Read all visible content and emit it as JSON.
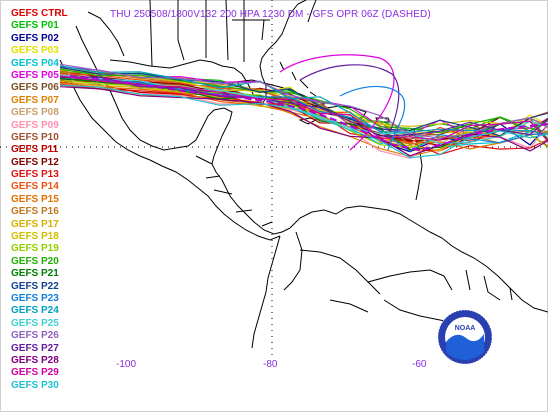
{
  "title": "THU 250508/1800V132  200 HPA 1230 DM - GFS OPR 06Z (DASHED)",
  "legend": [
    {
      "label": "GEFS CTRL",
      "color": "#e00000"
    },
    {
      "label": "GEFS P01",
      "color": "#00c000"
    },
    {
      "label": "GEFS P02",
      "color": "#000090"
    },
    {
      "label": "GEFS P03",
      "color": "#e0e000"
    },
    {
      "label": "GEFS P04",
      "color": "#00c0d0"
    },
    {
      "label": "GEFS P05",
      "color": "#e000e0"
    },
    {
      "label": "GEFS P06",
      "color": "#7a5020"
    },
    {
      "label": "GEFS P07",
      "color": "#e08000"
    },
    {
      "label": "GEFS P08",
      "color": "#c8a070"
    },
    {
      "label": "GEFS P09",
      "color": "#ff90b0"
    },
    {
      "label": "GEFS P10",
      "color": "#a05030"
    },
    {
      "label": "GEFS P11",
      "color": "#c00000"
    },
    {
      "label": "GEFS P12",
      "color": "#800000"
    },
    {
      "label": "GEFS P13",
      "color": "#e01010"
    },
    {
      "label": "GEFS P14",
      "color": "#f05010"
    },
    {
      "label": "GEFS P15",
      "color": "#e07000"
    },
    {
      "label": "GEFS P16",
      "color": "#c07820"
    },
    {
      "label": "GEFS P17",
      "color": "#d8b000"
    },
    {
      "label": "GEFS P18",
      "color": "#d0c000"
    },
    {
      "label": "GEFS P19",
      "color": "#90d000"
    },
    {
      "label": "GEFS P20",
      "color": "#20b000"
    },
    {
      "label": "GEFS P21",
      "color": "#008000"
    },
    {
      "label": "GEFS P22",
      "color": "#104090"
    },
    {
      "label": "GEFS P23",
      "color": "#1080e0"
    },
    {
      "label": "GEFS P24",
      "color": "#00a0c0"
    },
    {
      "label": "GEFS P25",
      "color": "#40d0d0"
    },
    {
      "label": "GEFS P26",
      "color": "#9060c0"
    },
    {
      "label": "GEFS P27",
      "color": "#6020a0"
    },
    {
      "label": "GEFS P28",
      "color": "#800080"
    },
    {
      "label": "GEFS P29",
      "color": "#d000a0"
    },
    {
      "label": "GEFS P30",
      "color": "#20c0d0"
    }
  ],
  "longitude_labels": [
    "-100",
    "-80",
    "-60"
  ],
  "logo": {
    "text": "NOAA",
    "colors": {
      "outer": "#2a3fb0",
      "wave": "#ffffff",
      "inner": "#1f5fd8"
    }
  },
  "operational_run": {
    "label": "GFS OPR 06Z (DASHED)",
    "color": "#b000d0",
    "style": "dashed"
  }
}
